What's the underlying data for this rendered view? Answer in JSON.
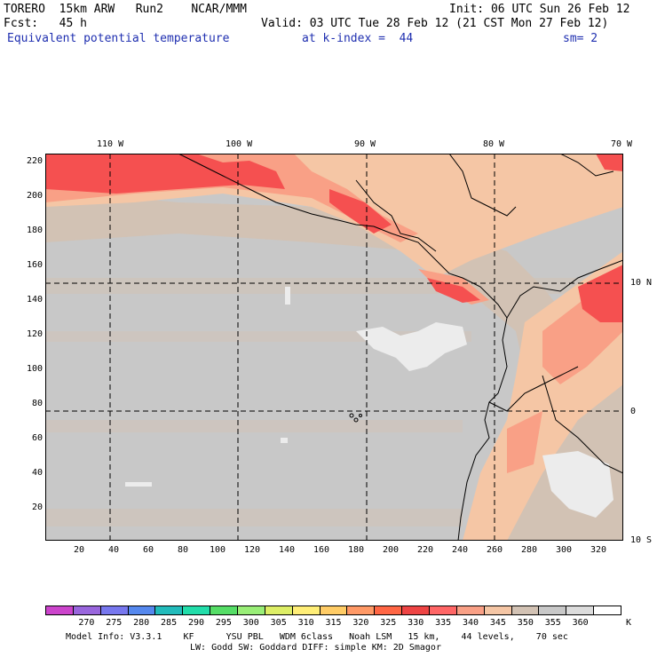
{
  "header": {
    "model": "TORERO  15km ARW   Run2    NCAR/MMM",
    "init": "Init: 06 UTC Sun 26 Feb 12",
    "fcst": "Fcst:   45 h",
    "valid": "Valid: 03 UTC Tue 28 Feb 12 (21 CST Mon 27 Feb 12)",
    "field": "Equivalent potential temperature",
    "level": "at k-index =  44",
    "smooth": "sm= 2"
  },
  "map": {
    "lon_labels": [
      "110 W",
      "100 W",
      "90 W",
      "80 W",
      "70 W"
    ],
    "lat_labels_right": [
      "10 N",
      "0",
      "10 S"
    ],
    "y_axis_ticks": [
      "220",
      "200",
      "180",
      "160",
      "140",
      "120",
      "100",
      "80",
      "60",
      "40",
      "20"
    ],
    "x_axis_ticks": [
      "20",
      "40",
      "60",
      "80",
      "100",
      "120",
      "140",
      "160",
      "180",
      "200",
      "220",
      "240",
      "260",
      "280",
      "300",
      "320"
    ],
    "colors": {
      "ocean_base": "#c8c8c8",
      "tan": "#d2c2b4",
      "peach": "#f5c6a5",
      "salmon": "#f9a086",
      "red": "#f55050",
      "white_patch": "#ececec",
      "border": "#000000"
    }
  },
  "colorbar": {
    "colors": [
      "#cc44cc",
      "#9966dd",
      "#7777ee",
      "#5588ee",
      "#22bbbb",
      "#22ddaa",
      "#55dd66",
      "#99ee77",
      "#ddee66",
      "#ffee77",
      "#ffcc66",
      "#ff9966",
      "#ff6644",
      "#ee4444",
      "#ff6666",
      "#f9a086",
      "#f5c6a5",
      "#d2c2b4",
      "#c8c8c8",
      "#dcdcdc",
      "#ffffff"
    ],
    "labels": [
      "270",
      "275",
      "280",
      "285",
      "290",
      "295",
      "300",
      "305",
      "310",
      "315",
      "320",
      "325",
      "330",
      "335",
      "340",
      "345",
      "350",
      "355",
      "360"
    ],
    "unit": "K"
  },
  "footer": {
    "line1": "Model Info: V3.3.1    KF      YSU PBL   WDM 6class   Noah LSM   15 km,    44 levels,    70 sec",
    "line2": "LW: Godd SW: Goddard DIFF: simple KM: 2D Smagor"
  }
}
